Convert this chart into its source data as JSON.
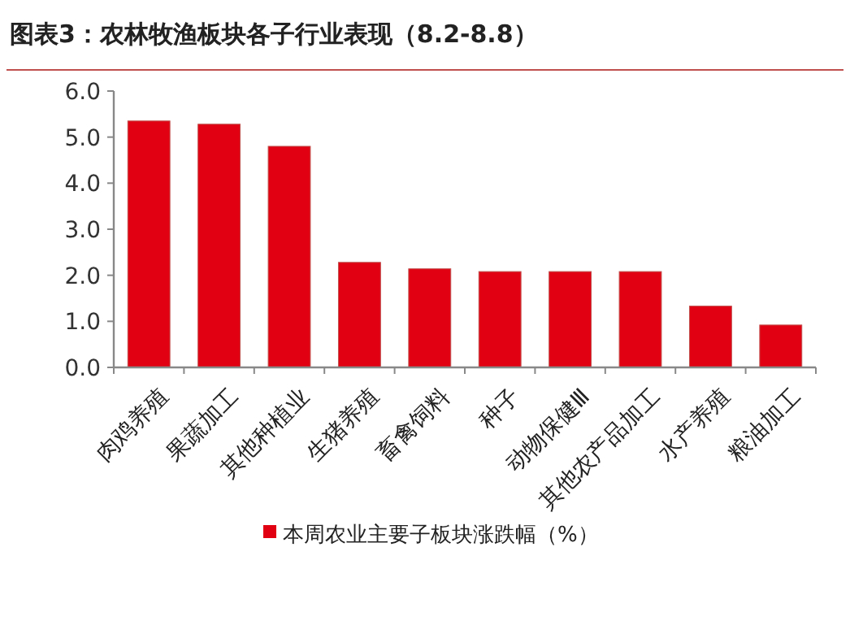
{
  "chart_data": {
    "type": "bar",
    "title": "图表3：农林牧渔板块各子行业表现（8.2-8.8）",
    "categories": [
      "肉鸡养殖",
      "果蔬加工",
      "其他种植业",
      "生猪养殖",
      "畜禽饲料",
      "种子",
      "动物保健Ⅲ",
      "其他农产品加工",
      "水产养殖",
      "粮油加工"
    ],
    "series": [
      {
        "name": "本周农业主要子板块涨跌幅（%）",
        "color": "#e00012",
        "values": [
          5.35,
          5.28,
          4.8,
          2.28,
          2.14,
          2.08,
          2.08,
          2.08,
          1.33,
          0.92
        ]
      }
    ],
    "ylim": [
      0,
      6
    ],
    "yticks": [
      {
        "value": 0,
        "label": "0.0"
      },
      {
        "value": 1,
        "label": "1.0"
      },
      {
        "value": 2,
        "label": "2.0"
      },
      {
        "value": 3,
        "label": "3.0"
      },
      {
        "value": 4,
        "label": "4.0"
      },
      {
        "value": 5,
        "label": "5.0"
      },
      {
        "value": 6,
        "label": "6.0"
      }
    ],
    "legend": "bottom",
    "grid": false
  }
}
